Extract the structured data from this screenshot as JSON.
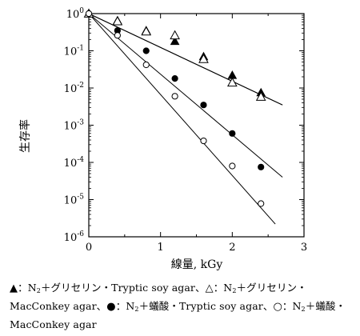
{
  "chart_data": {
    "type": "scatter",
    "xlabel": "線量, kGy",
    "ylabel": "生存率",
    "xlim": [
      0,
      3
    ],
    "ylim_log10": [
      -6,
      0
    ],
    "y_scale": "log",
    "x_ticks": [
      "0",
      "1",
      "2",
      "3"
    ],
    "y_tick_bases": [
      "10",
      "10",
      "10",
      "10",
      "10",
      "10",
      "10"
    ],
    "y_tick_exps": [
      "0",
      "-1",
      "-2",
      "-3",
      "-4",
      "-5",
      "-6"
    ],
    "y_tick_values": [
      1,
      0.1,
      0.01,
      0.001,
      0.0001,
      1e-05,
      1e-06
    ],
    "grid": false,
    "series": [
      {
        "marker": "filled-triangle",
        "points": [
          [
            0,
            1.0
          ],
          [
            0.4,
            0.65
          ],
          [
            0.8,
            0.35
          ],
          [
            1.2,
            0.18
          ],
          [
            1.6,
            0.07
          ],
          [
            2.0,
            0.022
          ],
          [
            2.4,
            0.0075
          ]
        ],
        "fit": [
          [
            0,
            1.0
          ],
          [
            2.7,
            0.0035
          ]
        ]
      },
      {
        "marker": "open-triangle",
        "points": [
          [
            0,
            1.0
          ],
          [
            0.4,
            0.62
          ],
          [
            0.8,
            0.33
          ],
          [
            1.2,
            0.26
          ],
          [
            1.6,
            0.06
          ],
          [
            2.0,
            0.014
          ],
          [
            2.4,
            0.0058
          ]
        ],
        "fit": [
          [
            0,
            1.0
          ],
          [
            2.7,
            0.0035
          ]
        ]
      },
      {
        "marker": "filled-circle",
        "points": [
          [
            0,
            1.0
          ],
          [
            0.4,
            0.35
          ],
          [
            0.8,
            0.1
          ],
          [
            1.2,
            0.018
          ],
          [
            1.6,
            0.0035
          ],
          [
            2.0,
            0.0006
          ],
          [
            2.4,
            7.5e-05
          ]
        ],
        "fit": [
          [
            0,
            1.0
          ],
          [
            2.7,
            4e-05
          ]
        ]
      },
      {
        "marker": "open-circle",
        "points": [
          [
            0,
            1.0
          ],
          [
            0.4,
            0.26
          ],
          [
            0.8,
            0.042
          ],
          [
            1.2,
            0.006
          ],
          [
            1.6,
            0.00038
          ],
          [
            2.0,
            8e-05
          ],
          [
            2.4,
            7.8e-06
          ]
        ],
        "fit": [
          [
            0,
            1.0
          ],
          [
            2.6,
            2.2e-06
          ]
        ]
      }
    ]
  },
  "caption": {
    "sym_filled_triangle": "▲",
    "part1a": "：N",
    "part1_sub": "2",
    "part1b": "＋グリセリン・Tryptic soy agar、",
    "sym_open_triangle": "△",
    "part2a": "：N",
    "part2_sub": "2",
    "part2b": "＋グリセリン・MacConkey agar、",
    "sym_filled_circle": "●",
    "part3a": "：N",
    "part3_sub": "2",
    "part3b": "＋蟻酸・Tryptic soy agar、",
    "sym_open_circle": "○",
    "part4a": "：N",
    "part4_sub": "2",
    "part4b": "＋蟻酸・MacConkey agar"
  }
}
